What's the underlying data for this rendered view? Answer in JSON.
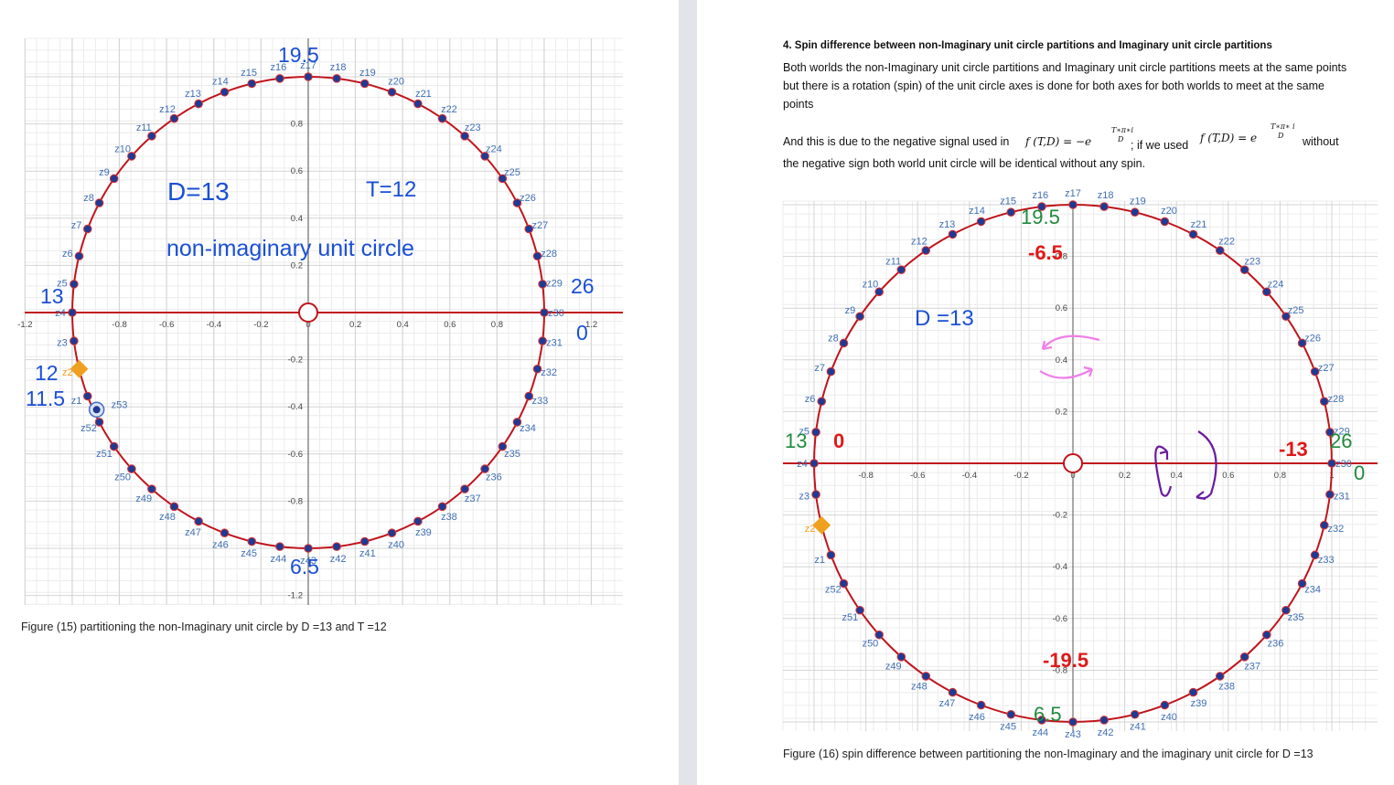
{
  "fig15": {
    "caption": "Figure (15) partitioning the non-Imaginary unit circle by D =13 and T =12",
    "D_label": "D=13",
    "T_label": "T=12",
    "title": "non-imaginary unit circle",
    "big_top": "19.5",
    "big_bottom": "6.5",
    "big_right": "26",
    "big_right_zero": "0",
    "big_left": "13",
    "big_12": "12",
    "big_11_5": "11.5",
    "x_ticks": [
      "-1.2",
      "-0.8",
      "-0.6",
      "-0.4",
      "-0.2",
      "0",
      "0.2",
      "0.4",
      "0.6",
      "0.8",
      "1.2"
    ],
    "y_ticks": [
      "0.8",
      "0.6",
      "0.4",
      "0.2",
      "-0.2",
      "-0.4",
      "-0.6",
      "-0.8",
      "-1.2"
    ]
  },
  "fig16": {
    "heading": "4. Spin difference between non-Imaginary unit circle partitions and Imaginary unit circle partitions",
    "paragraph": "Both worlds the non-Imaginary unit circle partitions and Imaginary unit circle partitions meets at the same points but there is a rotation (spin) of the unit circle axes is done for both axes for both worlds to meet at the same points",
    "formula_prefix": "And this is due to the negative signal used in",
    "formula1": "f (T,D) = −e",
    "formula1_exp": "T∗π∗i",
    "formula1_den": "D",
    "formula_mid": "; if we used",
    "formula2": "f (T,D) = e",
    "formula2_exp": "T∗π∗ i",
    "formula2_den": "D",
    "formula_end": "without",
    "formula_last": "the negative sign both world unit circle will be identical without any spin.",
    "caption": "Figure (16) spin difference between partitioning the non-Imaginary and the imaginary unit circle for D =13",
    "D_label": "D =13",
    "big_top": "19.5",
    "big_top_red": "-6.5",
    "big_bottom_red": "-19.5",
    "big_bottom": "6.5",
    "big_right": "26",
    "big_right_red": "-13",
    "big_right_zero": "0",
    "big_left": "13",
    "big_left_zero": "0",
    "x_ticks": [
      "-0.8",
      "-0.6",
      "-0.4",
      "-0.2",
      "0",
      "0.2",
      "0.4",
      "0.6",
      "0.8",
      "1"
    ],
    "y_ticks": [
      "0.8",
      "0.6",
      "0.4",
      "0.2",
      "-0.2",
      "-0.4",
      "-0.6",
      "-0.8"
    ]
  },
  "colors": {
    "circle": "#c0141b",
    "axis": "#c0141b",
    "point": "#1f3a93",
    "label": "#3f6fb5",
    "big_blue": "#1a4fd6",
    "orange": "#f0a020",
    "green": "#1f8a3c",
    "red": "#e01818"
  }
}
